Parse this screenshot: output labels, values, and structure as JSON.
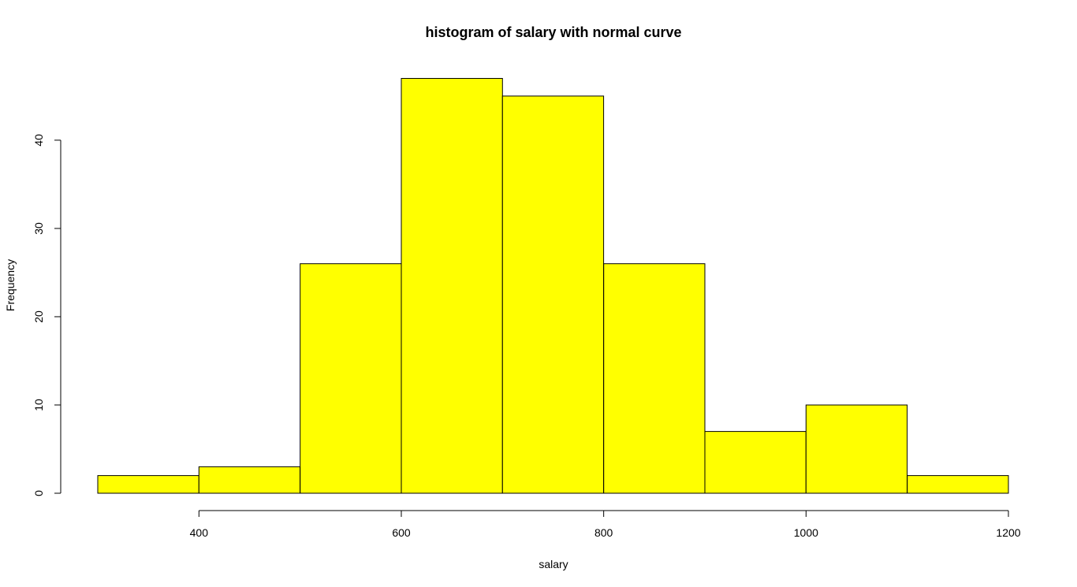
{
  "chart_data": {
    "type": "histogram",
    "title": "histogram of salary with normal curve",
    "xlabel": "salary",
    "ylabel": "Frequency",
    "bins": [
      {
        "start": 300,
        "end": 400,
        "count": 2
      },
      {
        "start": 400,
        "end": 500,
        "count": 3
      },
      {
        "start": 500,
        "end": 600,
        "count": 26
      },
      {
        "start": 600,
        "end": 700,
        "count": 47
      },
      {
        "start": 700,
        "end": 800,
        "count": 45
      },
      {
        "start": 800,
        "end": 900,
        "count": 26
      },
      {
        "start": 900,
        "end": 1000,
        "count": 7
      },
      {
        "start": 1000,
        "end": 1100,
        "count": 10
      },
      {
        "start": 1100,
        "end": 1200,
        "count": 2
      }
    ],
    "x_ticks": [
      400,
      600,
      800,
      1000,
      1200
    ],
    "y_ticks": [
      0,
      10,
      20,
      30,
      40
    ],
    "xlim": [
      300,
      1200
    ],
    "ylim": [
      0,
      47
    ],
    "bar_color": "#ffff00",
    "border_color": "#000000",
    "grid": false,
    "legend": "none"
  }
}
